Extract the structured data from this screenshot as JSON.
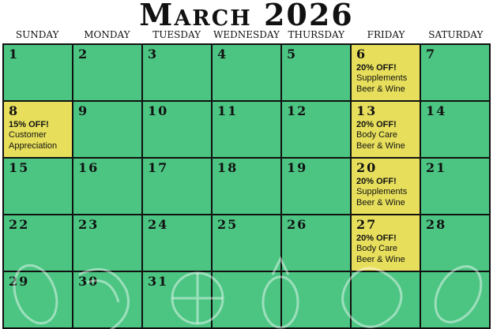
{
  "header": {
    "title": "March 2026"
  },
  "weekdays": [
    "SUNDAY",
    "MONDAY",
    "TUESDAY",
    "WEDNESDAY",
    "THURSDAY",
    "FRIDAY",
    "SATURDAY"
  ],
  "weeks": [
    [
      {
        "day": "1"
      },
      {
        "day": "2"
      },
      {
        "day": "3"
      },
      {
        "day": "4"
      },
      {
        "day": "5"
      },
      {
        "day": "6",
        "highlight": true,
        "offer": "20% OFF!",
        "lines": [
          "Supplements",
          "Beer & Wine"
        ]
      },
      {
        "day": "7"
      }
    ],
    [
      {
        "day": "8",
        "highlight": true,
        "offer": "15% OFF!",
        "lines": [
          "Customer",
          "Appreciation"
        ]
      },
      {
        "day": "9"
      },
      {
        "day": "10"
      },
      {
        "day": "11"
      },
      {
        "day": "12"
      },
      {
        "day": "13",
        "highlight": true,
        "offer": "20% OFF!",
        "lines": [
          "Body Care",
          "Beer & Wine"
        ]
      },
      {
        "day": "14"
      }
    ],
    [
      {
        "day": "15"
      },
      {
        "day": "16"
      },
      {
        "day": "17"
      },
      {
        "day": "18"
      },
      {
        "day": "19"
      },
      {
        "day": "20",
        "highlight": true,
        "offer": "20% OFF!",
        "lines": [
          "Supplements",
          "Beer & Wine"
        ]
      },
      {
        "day": "21"
      }
    ],
    [
      {
        "day": "22"
      },
      {
        "day": "23"
      },
      {
        "day": "24"
      },
      {
        "day": "25"
      },
      {
        "day": "26"
      },
      {
        "day": "27",
        "highlight": true,
        "offer": "20% OFF!",
        "lines": [
          "Body Care",
          "Beer & Wine"
        ]
      },
      {
        "day": "28"
      }
    ],
    [
      {
        "day": "29"
      },
      {
        "day": "30"
      },
      {
        "day": "31"
      },
      null,
      null,
      null,
      null
    ]
  ]
}
